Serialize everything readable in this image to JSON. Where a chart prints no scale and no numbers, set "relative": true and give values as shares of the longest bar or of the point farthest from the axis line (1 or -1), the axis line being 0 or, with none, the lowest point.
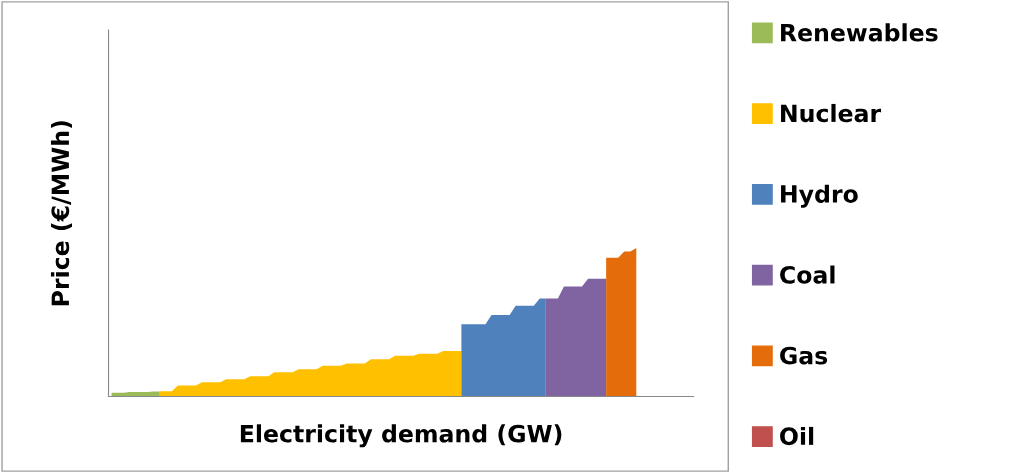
{
  "chart_data": {
    "type": "area",
    "relative": true,
    "tick_labels": false,
    "legend": "right",
    "xlabel": "Electricity demand (GW)",
    "ylabel": "Price (€/MWh)",
    "categories": [
      null,
      null,
      null,
      null,
      null,
      null,
      null,
      null,
      null,
      null,
      null,
      null,
      null,
      null,
      null,
      null,
      null,
      null,
      null,
      null,
      null,
      null,
      null,
      null,
      null,
      null,
      null,
      null,
      null,
      null,
      null,
      null,
      null,
      null,
      null,
      null,
      null,
      null,
      null,
      null,
      null,
      null,
      null,
      null,
      null,
      null,
      null,
      null,
      null,
      null,
      null,
      null,
      null,
      null,
      null,
      null,
      null,
      null,
      null,
      null,
      null,
      null,
      null,
      null,
      null,
      null,
      null,
      null,
      null,
      null,
      null,
      null,
      null,
      null,
      null,
      null,
      null,
      null,
      null,
      null,
      null,
      null,
      null,
      null,
      null,
      null,
      null,
      null,
      null,
      null,
      null,
      null,
      null,
      null,
      null,
      null,
      null
    ],
    "series": [
      {
        "name": "Renewables",
        "color": "#9bbb59",
        "values": [
          0.026,
          0.026,
          0.026,
          0.031,
          0.031,
          0.031,
          0.031,
          0.034,
          0.034,
          null,
          null,
          null,
          null,
          null,
          null,
          null,
          null,
          null,
          null,
          null,
          null,
          null,
          null,
          null,
          null,
          null,
          null,
          null,
          null,
          null,
          null,
          null,
          null,
          null,
          null,
          null,
          null,
          null,
          null,
          null,
          null,
          null,
          null,
          null,
          null,
          null,
          null,
          null,
          null,
          null,
          null,
          null,
          null,
          null,
          null,
          null,
          null,
          null,
          null,
          null,
          null,
          null,
          null,
          null,
          null,
          null,
          null,
          null,
          null,
          null,
          null,
          null,
          null,
          null,
          null,
          null,
          null,
          null,
          null,
          null,
          null,
          null,
          null,
          null,
          null,
          null,
          null,
          null,
          null,
          null,
          null,
          null,
          null,
          null,
          null,
          null,
          null
        ]
      },
      {
        "name": "Nuclear",
        "color": "#ffc000",
        "values": [
          null,
          null,
          null,
          null,
          null,
          null,
          null,
          null,
          0.036,
          0.036,
          0.036,
          0.075,
          0.075,
          0.075,
          0.075,
          0.096,
          0.096,
          0.096,
          0.096,
          0.117,
          0.117,
          0.117,
          0.117,
          0.137,
          0.137,
          0.137,
          0.137,
          0.163,
          0.163,
          0.163,
          0.163,
          0.184,
          0.184,
          0.184,
          0.184,
          0.207,
          0.207,
          0.207,
          0.207,
          0.223,
          0.223,
          0.223,
          0.223,
          0.251,
          0.251,
          0.251,
          0.251,
          0.275,
          0.275,
          0.275,
          0.275,
          0.288,
          0.288,
          0.288,
          0.288,
          0.306,
          0.306,
          0.306,
          0.306,
          null,
          null,
          null,
          null,
          null,
          null,
          null,
          null,
          null,
          null,
          null,
          null,
          null,
          null,
          null,
          null,
          null,
          null,
          null,
          null,
          null,
          null,
          null,
          null,
          null,
          null,
          null,
          null,
          null,
          null,
          null,
          null,
          null,
          null,
          null,
          null,
          null,
          null
        ]
      },
      {
        "name": "Hydro",
        "color": "#4f81bd",
        "values": [
          null,
          null,
          null,
          null,
          null,
          null,
          null,
          null,
          null,
          null,
          null,
          null,
          null,
          null,
          null,
          null,
          null,
          null,
          null,
          null,
          null,
          null,
          null,
          null,
          null,
          null,
          null,
          null,
          null,
          null,
          null,
          null,
          null,
          null,
          null,
          null,
          null,
          null,
          null,
          null,
          null,
          null,
          null,
          null,
          null,
          null,
          null,
          null,
          null,
          null,
          null,
          null,
          null,
          null,
          null,
          null,
          null,
          null,
          0.487,
          0.487,
          0.487,
          0.487,
          0.487,
          0.549,
          0.549,
          0.549,
          0.549,
          0.611,
          0.611,
          0.611,
          0.611,
          0.661,
          0.661,
          null,
          null,
          null,
          null,
          null,
          null,
          null,
          null,
          null,
          null,
          null,
          null,
          null,
          null,
          null,
          null,
          null,
          null,
          null,
          null,
          null,
          null,
          null,
          null
        ]
      },
      {
        "name": "Coal",
        "color": "#8064a2",
        "values": [
          null,
          null,
          null,
          null,
          null,
          null,
          null,
          null,
          null,
          null,
          null,
          null,
          null,
          null,
          null,
          null,
          null,
          null,
          null,
          null,
          null,
          null,
          null,
          null,
          null,
          null,
          null,
          null,
          null,
          null,
          null,
          null,
          null,
          null,
          null,
          null,
          null,
          null,
          null,
          null,
          null,
          null,
          null,
          null,
          null,
          null,
          null,
          null,
          null,
          null,
          null,
          null,
          null,
          null,
          null,
          null,
          null,
          null,
          null,
          null,
          null,
          null,
          null,
          null,
          null,
          null,
          null,
          null,
          null,
          null,
          null,
          null,
          0.661,
          0.661,
          0.661,
          0.741,
          0.741,
          0.741,
          0.741,
          0.793,
          0.793,
          0.793,
          0.793,
          null,
          null,
          null,
          null,
          null,
          null,
          null,
          null,
          null,
          null,
          null,
          null,
          null,
          null
        ]
      },
      {
        "name": "Gas",
        "color": "#e46c0a",
        "values": [
          null,
          null,
          null,
          null,
          null,
          null,
          null,
          null,
          null,
          null,
          null,
          null,
          null,
          null,
          null,
          null,
          null,
          null,
          null,
          null,
          null,
          null,
          null,
          null,
          null,
          null,
          null,
          null,
          null,
          null,
          null,
          null,
          null,
          null,
          null,
          null,
          null,
          null,
          null,
          null,
          null,
          null,
          null,
          null,
          null,
          null,
          null,
          null,
          null,
          null,
          null,
          null,
          null,
          null,
          null,
          null,
          null,
          null,
          null,
          null,
          null,
          null,
          null,
          null,
          null,
          null,
          null,
          null,
          null,
          null,
          null,
          null,
          null,
          null,
          null,
          null,
          null,
          null,
          null,
          null,
          null,
          null,
          0.935,
          0.935,
          0.935,
          0.977,
          0.977,
          1.0,
          null,
          null,
          null,
          null,
          null,
          null,
          null,
          null,
          null
        ]
      },
      {
        "name": "Oil",
        "color": "#c0504d",
        "values": [
          null,
          null,
          null,
          null,
          null,
          null,
          null,
          null,
          null,
          null,
          null,
          null,
          null,
          null,
          null,
          null,
          null,
          null,
          null,
          null,
          null,
          null,
          null,
          null,
          null,
          null,
          null,
          null,
          null,
          null,
          null,
          null,
          null,
          null,
          null,
          null,
          null,
          null,
          null,
          null,
          null,
          null,
          null,
          null,
          null,
          null,
          null,
          null,
          null,
          null,
          null,
          null,
          null,
          null,
          null,
          null,
          null,
          null,
          null,
          null,
          null,
          null,
          null,
          null,
          null,
          null,
          null,
          null,
          null,
          null,
          null,
          null,
          null,
          null,
          null,
          null,
          null,
          null,
          null,
          null,
          null,
          null,
          null,
          null,
          null,
          null,
          null,
          null,
          null,
          null,
          null,
          null,
          null,
          null,
          null,
          null,
          null
        ]
      }
    ]
  }
}
